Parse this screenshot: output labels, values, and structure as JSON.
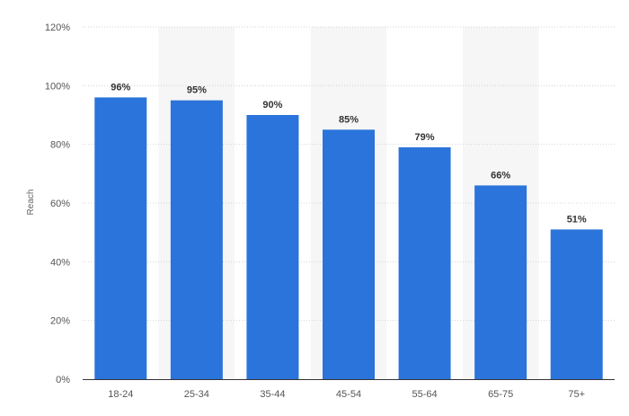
{
  "chart_data": {
    "type": "bar",
    "categories": [
      "18-24",
      "25-34",
      "35-44",
      "45-54",
      "55-64",
      "65-75",
      "75+"
    ],
    "values": [
      96,
      95,
      90,
      85,
      79,
      66,
      51
    ],
    "data_labels": [
      "96%",
      "95%",
      "90%",
      "85%",
      "79%",
      "66%",
      "51%"
    ],
    "title": "",
    "xlabel": "",
    "ylabel": "Reach",
    "ylim": [
      0,
      120
    ],
    "yticks": [
      0,
      20,
      40,
      60,
      80,
      100,
      120
    ],
    "ytick_labels": [
      "0%",
      "20%",
      "40%",
      "60%",
      "80%",
      "100%",
      "120%"
    ],
    "grid": true,
    "legend": "none",
    "colors": {
      "bar": "#2a74db",
      "band": "#f6f6f6",
      "grid": "#d4d4d4",
      "axis": "#333333"
    }
  }
}
